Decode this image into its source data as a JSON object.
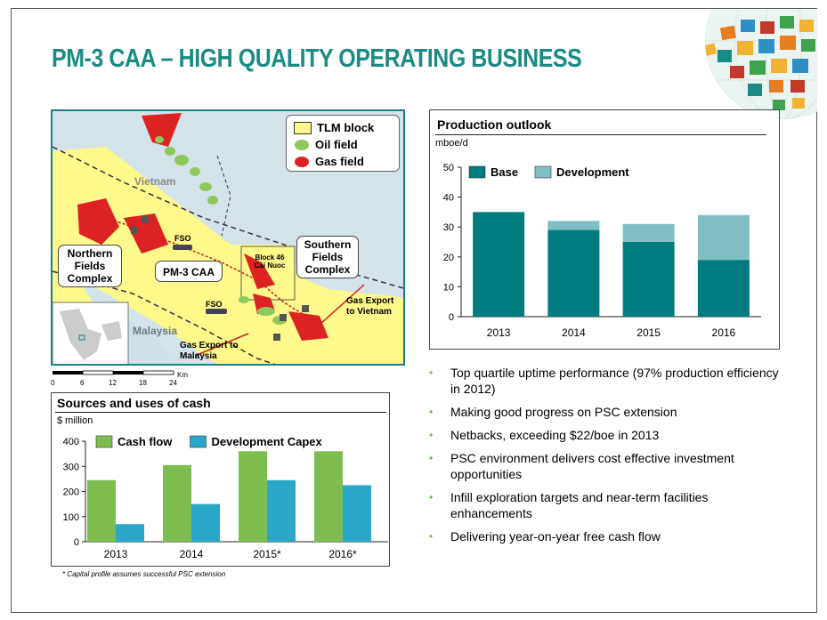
{
  "page": {
    "title": "PM-3 CAA – HIGH QUALITY OPERATING BUSINESS",
    "footnote": "* Capital profile assumes successful PSC extension"
  },
  "colors": {
    "title": "#1a8b84",
    "base": "#007b80",
    "development": "#7fbfc4",
    "cash_flow": "#7dbd4f",
    "capex": "#2aa6c8",
    "bullet": "#6bbf3f",
    "tlm_block": "#fff88a",
    "oil_field": "#8cc85a",
    "gas_field": "#dd2222"
  },
  "map": {
    "legend": [
      {
        "label": "TLM block",
        "icon": "yellow-square-icon"
      },
      {
        "label": "Oil field",
        "icon": "green-blob-icon"
      },
      {
        "label": "Gas field",
        "icon": "red-blob-icon"
      }
    ],
    "labels": {
      "vietnam": "Vietnam",
      "malaysia": "Malaysia",
      "northern": "Northern Fields Complex",
      "pm3": "PM-3 CAA",
      "southern": "Southern Fields Complex",
      "block46": "Block 46 Cai Nuoc",
      "fso1": "FSO",
      "fso2": "FSO",
      "export_vietnam": "Gas Export to Vietnam",
      "export_malaysia": "Gas Export to Malaysia"
    },
    "scale": {
      "ticks": [
        "0",
        "6",
        "12",
        "18",
        "24"
      ],
      "unit": "Km"
    }
  },
  "chart_data": [
    {
      "type": "bar",
      "title": "Production outlook",
      "unit": "mboe/d",
      "stacked": true,
      "categories": [
        "2013",
        "2014",
        "2015",
        "2016"
      ],
      "series": [
        {
          "name": "Base",
          "values": [
            35,
            29,
            25,
            19
          ]
        },
        {
          "name": "Development",
          "values": [
            0,
            3,
            6,
            15
          ]
        }
      ],
      "ylim": [
        0,
        50
      ],
      "yticks": [
        "0",
        "10",
        "20",
        "30",
        "40",
        "50"
      ],
      "legend": "top-left"
    },
    {
      "type": "bar",
      "title": "Sources and uses of cash",
      "unit": "$ million",
      "categories": [
        "2013",
        "2014",
        "2015*",
        "2016*"
      ],
      "series": [
        {
          "name": "Cash flow",
          "values": [
            245,
            305,
            360,
            360
          ]
        },
        {
          "name": "Development Capex",
          "values": [
            70,
            150,
            245,
            225
          ]
        }
      ],
      "ylim": [
        0,
        400
      ],
      "yticks": [
        "0",
        "100",
        "200",
        "300",
        "400"
      ],
      "legend": "top"
    }
  ],
  "bullets": [
    "Top quartile uptime performance (97% production efficiency in 2012)",
    "Making good progress on PSC extension",
    "Netbacks, exceeding $22/boe in 2013",
    "PSC environment delivers cost effective investment opportunities",
    "Infill exploration targets and near-term facilities enhancements",
    "Delivering year-on-year free cash flow"
  ]
}
